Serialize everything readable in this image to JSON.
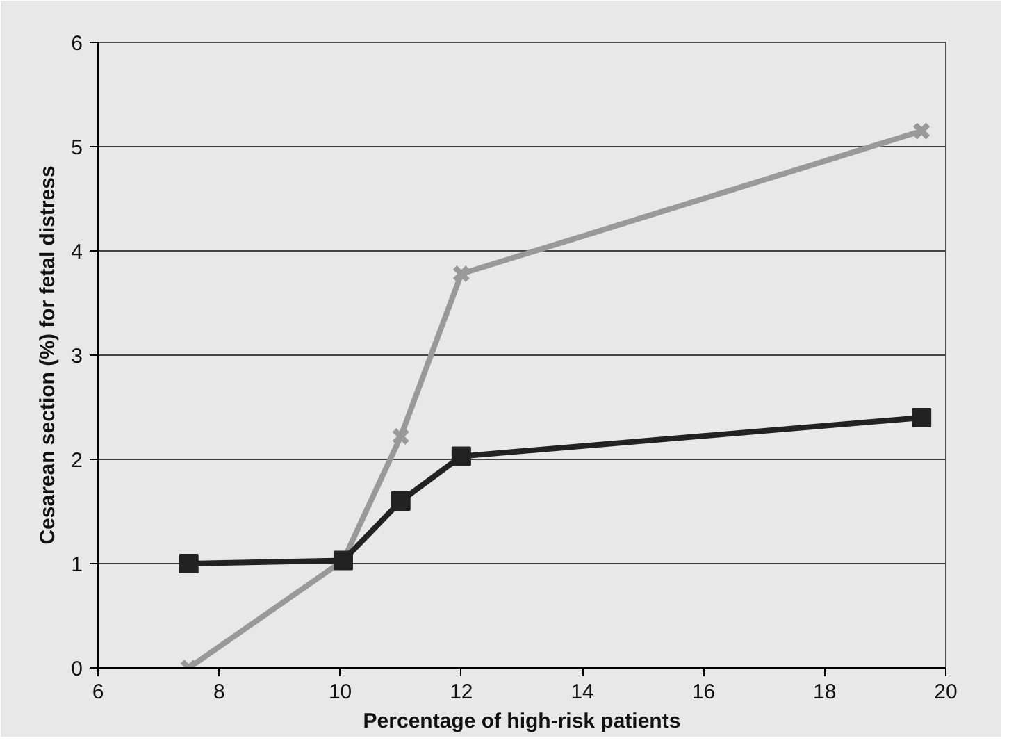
{
  "chart_data": {
    "type": "line",
    "xlabel": "Percentage of high-risk patients",
    "ylabel": "Cesarean section (%) for fetal distress",
    "xlim": [
      6,
      20
    ],
    "xticks": [
      6,
      8,
      10,
      12,
      14,
      16,
      18,
      20
    ],
    "ylim": [
      0,
      6
    ],
    "yticks": [
      0,
      1,
      2,
      3,
      4,
      5,
      6
    ],
    "grid": "y",
    "series": [
      {
        "color": "#999999",
        "marker": "cross",
        "x": [
          7.5,
          10.05,
          11,
          12,
          19.6
        ],
        "values": [
          0,
          1.03,
          2.22,
          3.78,
          5.15
        ]
      },
      {
        "color": "#222222",
        "marker": "square",
        "x": [
          7.5,
          10.05,
          11,
          12,
          19.6
        ],
        "values": [
          1.0,
          1.03,
          1.6,
          2.03,
          2.4
        ]
      }
    ]
  }
}
